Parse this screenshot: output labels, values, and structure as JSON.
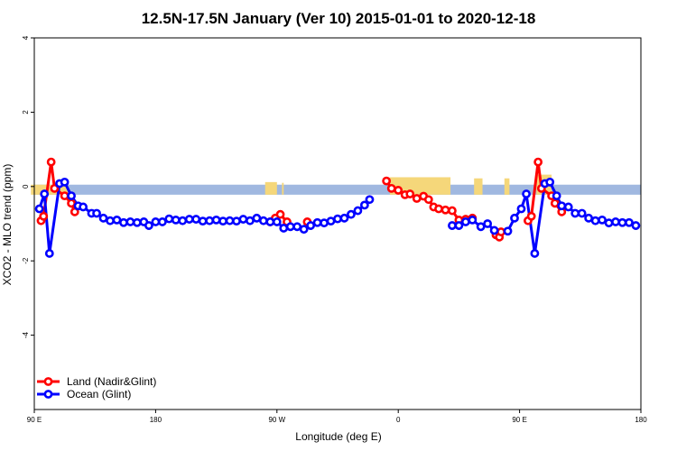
{
  "chart_data": {
    "type": "line",
    "title": "12.5N-17.5N January (Ver 10)   2015-01-01 to 2020-12-18",
    "xlabel": "Longitude (deg E)",
    "ylabel": "XCO2 - MLO trend (ppm)",
    "xlim": [
      90,
      450
    ],
    "ylim": [
      -6,
      4
    ],
    "x_ticks": [
      {
        "value": 90,
        "label": "90 E"
      },
      {
        "value": 162,
        "label": "180"
      },
      {
        "value": 234,
        "label": "90 W"
      },
      {
        "value": 306,
        "label": "0"
      },
      {
        "value": 378,
        "label": "90 E"
      },
      {
        "value": 450,
        "label": "180"
      }
    ],
    "y_ticks": [
      {
        "value": 4,
        "label": "4"
      },
      {
        "value": 2,
        "label": "2"
      },
      {
        "value": 0,
        "label": "0"
      },
      {
        "value": -2,
        "label": "-2"
      },
      {
        "value": -4,
        "label": "-4"
      }
    ],
    "legend": {
      "position": "bottom-left",
      "entries": [
        {
          "label": "Land (Nadir&Glint)",
          "color": "#ff0000"
        },
        {
          "label": "Ocean (Glint)",
          "color": "#0000ff"
        }
      ]
    },
    "background_bands": {
      "blue_color": "#a0b8e0",
      "yellow_color": "#f5d77a",
      "y_range": [
        -0.22,
        0.05
      ],
      "yellow_segments": [
        [
          88,
          110,
          0.05
        ],
        [
          227,
          234,
          0.12
        ],
        [
          237,
          238,
          0.1
        ],
        [
          301,
          337,
          0.25
        ],
        [
          351,
          356,
          0.22
        ],
        [
          369,
          372,
          0.22
        ],
        [
          388,
          397,
          0.32
        ]
      ]
    },
    "series": [
      {
        "name": "Land (Nadir&Glint)",
        "color": "#ff0000",
        "segments": [
          [
            [
              94,
              -0.92
            ],
            [
              95.5,
              -0.8
            ],
            [
              100,
              0.66
            ],
            [
              102,
              -0.05
            ],
            [
              108,
              -0.25
            ],
            [
              112,
              -0.45
            ],
            [
              114,
              -0.68
            ]
          ],
          [
            [
              230,
              -0.95
            ],
            [
              233,
              -0.85
            ],
            [
              236,
              -0.75
            ],
            [
              240,
              -0.95
            ]
          ],
          [
            [
              252,
              -0.95
            ]
          ],
          [
            [
              299,
              0.15
            ],
            [
              302,
              -0.05
            ],
            [
              306,
              -0.1
            ],
            [
              310,
              -0.22
            ],
            [
              313,
              -0.2
            ],
            [
              317,
              -0.32
            ],
            [
              321,
              -0.26
            ],
            [
              324,
              -0.35
            ],
            [
              327,
              -0.55
            ],
            [
              330,
              -0.6
            ],
            [
              334,
              -0.63
            ],
            [
              338,
              -0.65
            ],
            [
              342,
              -0.9
            ],
            [
              346,
              -0.88
            ],
            [
              350,
              -0.85
            ]
          ],
          [
            [
              364,
              -1.3
            ],
            [
              366,
              -1.36
            ],
            [
              367,
              -1.22
            ]
          ],
          [
            [
              383,
              -0.92
            ],
            [
              385,
              -0.8
            ],
            [
              389,
              0.66
            ],
            [
              391,
              -0.05
            ],
            [
              397,
              -0.25
            ],
            [
              399,
              -0.45
            ],
            [
              403,
              -0.68
            ]
          ]
        ]
      },
      {
        "name": "Ocean (Glint)",
        "color": "#0000ff",
        "segments": [
          [
            [
              93,
              -0.6
            ],
            [
              96,
              -0.2
            ],
            [
              99,
              -1.8
            ],
            [
              105,
              0.08
            ],
            [
              108,
              0.12
            ],
            [
              112,
              -0.25
            ],
            [
              116,
              -0.52
            ],
            [
              119,
              -0.55
            ],
            [
              124,
              -0.72
            ],
            [
              127,
              -0.72
            ],
            [
              131,
              -0.85
            ],
            [
              135,
              -0.92
            ],
            [
              139,
              -0.9
            ],
            [
              143,
              -0.97
            ],
            [
              147,
              -0.95
            ],
            [
              151,
              -0.97
            ],
            [
              155,
              -0.95
            ],
            [
              158,
              -1.05
            ],
            [
              162,
              -0.95
            ],
            [
              166,
              -0.95
            ],
            [
              170,
              -0.87
            ],
            [
              174,
              -0.9
            ],
            [
              178,
              -0.92
            ],
            [
              182,
              -0.88
            ],
            [
              186,
              -0.88
            ],
            [
              190,
              -0.93
            ],
            [
              194,
              -0.92
            ],
            [
              198,
              -0.9
            ],
            [
              202,
              -0.93
            ],
            [
              206,
              -0.92
            ],
            [
              210,
              -0.93
            ],
            [
              214,
              -0.88
            ],
            [
              218,
              -0.92
            ],
            [
              222,
              -0.85
            ],
            [
              226,
              -0.92
            ],
            [
              230,
              -0.95
            ],
            [
              234,
              -0.95
            ],
            [
              238,
              -1.12
            ],
            [
              242,
              -1.08
            ],
            [
              246,
              -1.08
            ],
            [
              250,
              -1.15
            ],
            [
              254,
              -1.05
            ],
            [
              258,
              -0.97
            ],
            [
              262,
              -0.98
            ],
            [
              266,
              -0.93
            ],
            [
              270,
              -0.87
            ],
            [
              274,
              -0.85
            ],
            [
              278,
              -0.75
            ],
            [
              282,
              -0.65
            ],
            [
              286,
              -0.5
            ],
            [
              289,
              -0.35
            ]
          ],
          [
            [
              338,
              -1.05
            ],
            [
              342,
              -1.05
            ],
            [
              346,
              -0.95
            ],
            [
              350,
              -0.9
            ],
            [
              355,
              -1.08
            ],
            [
              359,
              -1.0
            ],
            [
              363,
              -1.18
            ],
            [
              371,
              -1.2
            ],
            [
              375,
              -0.85
            ],
            [
              379,
              -0.6
            ],
            [
              382,
              -0.2
            ],
            [
              387,
              -1.8
            ],
            [
              393,
              0.08
            ],
            [
              396,
              0.12
            ],
            [
              400,
              -0.25
            ],
            [
              403,
              -0.52
            ],
            [
              407,
              -0.55
            ],
            [
              411,
              -0.72
            ],
            [
              415,
              -0.72
            ],
            [
              419,
              -0.85
            ],
            [
              423,
              -0.92
            ],
            [
              427,
              -0.9
            ],
            [
              431,
              -0.98
            ],
            [
              435,
              -0.95
            ],
            [
              439,
              -0.97
            ],
            [
              443,
              -0.97
            ],
            [
              447,
              -1.05
            ]
          ]
        ]
      }
    ]
  }
}
